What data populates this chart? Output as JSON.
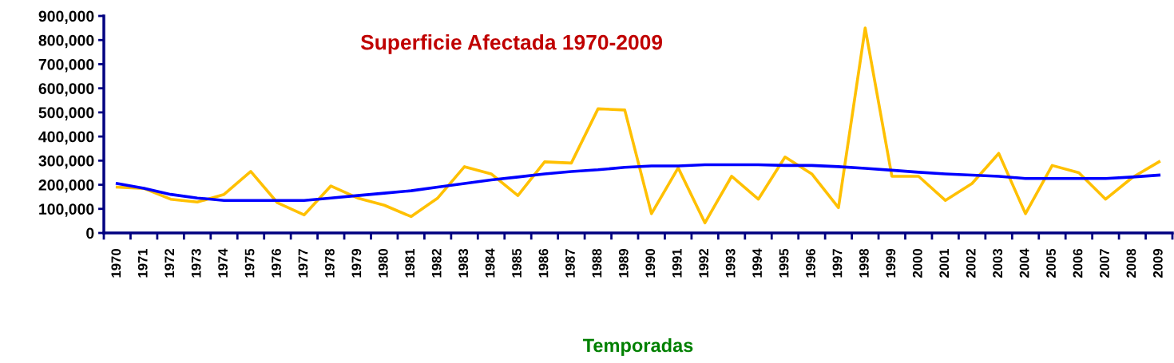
{
  "chart_data": {
    "type": "line",
    "title": "Superficie Afectada 1970-2009",
    "xlabel": "Temporadas",
    "categories": [
      "1970",
      "1971",
      "1972",
      "1973",
      "1974",
      "1975",
      "1976",
      "1977",
      "1978",
      "1979",
      "1980",
      "1981",
      "1982",
      "1983",
      "1984",
      "1985",
      "1986",
      "1987",
      "1988",
      "1989",
      "1990",
      "1991",
      "1992",
      "1993",
      "1994",
      "1995",
      "1996",
      "1997",
      "1998",
      "1999",
      "2000",
      "2001",
      "2002",
      "2003",
      "2004",
      "2005",
      "2006",
      "2007",
      "2008",
      "2009"
    ],
    "series": [
      {
        "color": "#ffc000",
        "values": [
          190000,
          185000,
          140000,
          128000,
          160000,
          255000,
          125000,
          75000,
          195000,
          145000,
          115000,
          68000,
          145000,
          275000,
          245000,
          155000,
          295000,
          290000,
          515000,
          510000,
          80000,
          270000,
          42000,
          235000,
          140000,
          315000,
          245000,
          105000,
          850000,
          235000,
          235000,
          135000,
          205000,
          330000,
          80000,
          280000,
          250000,
          140000,
          230000,
          295000
        ]
      },
      {
        "color": "#0000ff",
        "values": [
          205000,
          185000,
          160000,
          145000,
          135000,
          135000,
          135000,
          135000,
          145000,
          155000,
          165000,
          175000,
          190000,
          205000,
          220000,
          232000,
          245000,
          255000,
          262000,
          272000,
          278000,
          278000,
          283000,
          283000,
          283000,
          280000,
          280000,
          275000,
          268000,
          260000,
          252000,
          245000,
          240000,
          235000,
          226000,
          226000,
          226000,
          226000,
          232000,
          240000
        ]
      }
    ],
    "ylim": [
      0,
      900000
    ],
    "yticks": [
      {
        "value": 0,
        "label": "0"
      },
      {
        "value": 100000,
        "label": "100,000"
      },
      {
        "value": 200000,
        "label": "200,000"
      },
      {
        "value": 300000,
        "label": "300,000"
      },
      {
        "value": 400000,
        "label": "400,000"
      },
      {
        "value": 500000,
        "label": "500,000"
      },
      {
        "value": 600000,
        "label": "600,000"
      },
      {
        "value": 700000,
        "label": "700,000"
      },
      {
        "value": 800000,
        "label": "800,000"
      },
      {
        "value": 900000,
        "label": "900,000"
      }
    ],
    "grid": false,
    "legend": false,
    "marker": "none",
    "line_style": "solid"
  }
}
